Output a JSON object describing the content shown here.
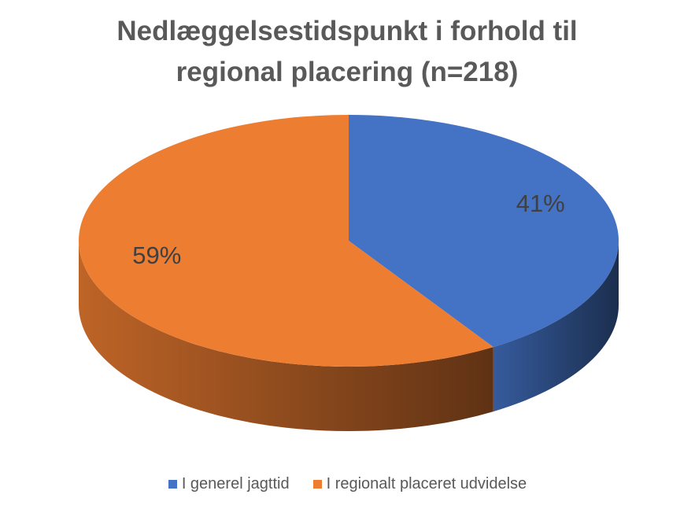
{
  "chart_data": {
    "type": "pie3d",
    "title": "Nedlæggelsestidspunkt i forhold til regional placering (n=218)",
    "categories": [
      "I generel jagttid",
      "I regionalt placeret udvidelse"
    ],
    "values": [
      41,
      59
    ],
    "value_labels": [
      "41%",
      "59%"
    ],
    "colors": [
      "#4472c4",
      "#ed7d31"
    ],
    "legend": "bottom"
  }
}
